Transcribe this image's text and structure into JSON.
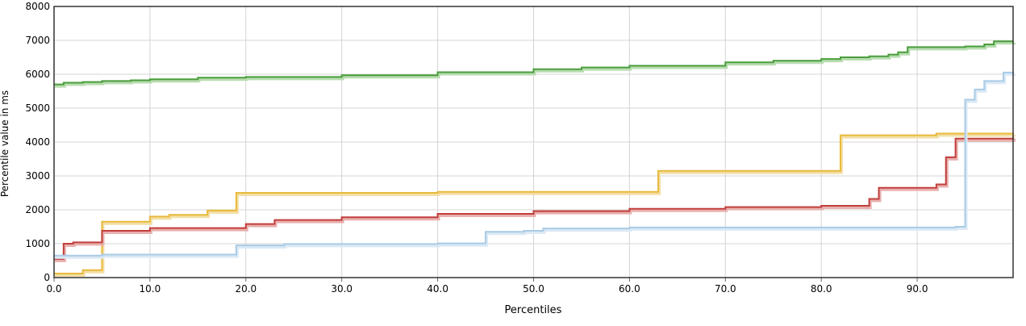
{
  "chart_data": {
    "type": "line",
    "title": "",
    "xlabel": "Percentiles",
    "ylabel": "Percentile value in ms",
    "xlim": [
      0,
      100
    ],
    "ylim": [
      0,
      8000
    ],
    "x_ticks": [
      "0.0",
      "10.0",
      "20.0",
      "30.0",
      "40.0",
      "50.0",
      "60.0",
      "70.0",
      "80.0",
      "90.0"
    ],
    "y_ticks": [
      "0",
      "1000",
      "2000",
      "3000",
      "4000",
      "5000",
      "6000",
      "7000",
      "8000"
    ],
    "grid": true,
    "legend": "none",
    "series": [
      {
        "color": "#4a9e3c",
        "shadow": "#b8dcb0",
        "points": [
          [
            0,
            5700
          ],
          [
            1,
            5750
          ],
          [
            3,
            5770
          ],
          [
            5,
            5800
          ],
          [
            8,
            5820
          ],
          [
            10,
            5850
          ],
          [
            15,
            5900
          ],
          [
            20,
            5920
          ],
          [
            30,
            5970
          ],
          [
            40,
            6060
          ],
          [
            50,
            6150
          ],
          [
            55,
            6200
          ],
          [
            60,
            6250
          ],
          [
            70,
            6350
          ],
          [
            75,
            6400
          ],
          [
            80,
            6450
          ],
          [
            82,
            6500
          ],
          [
            85,
            6530
          ],
          [
            87,
            6580
          ],
          [
            88,
            6650
          ],
          [
            89,
            6800
          ],
          [
            95,
            6820
          ],
          [
            97,
            6880
          ],
          [
            98,
            6970
          ],
          [
            100,
            6980
          ]
        ]
      },
      {
        "color": "#e8b93c",
        "shadow": "#f3dfa5",
        "points": [
          [
            0,
            120
          ],
          [
            3,
            220
          ],
          [
            5,
            1650
          ],
          [
            10,
            1800
          ],
          [
            12,
            1850
          ],
          [
            16,
            1980
          ],
          [
            19,
            2500
          ],
          [
            40,
            2530
          ],
          [
            63,
            3150
          ],
          [
            82,
            4200
          ],
          [
            92,
            4250
          ],
          [
            100,
            4270
          ]
        ]
      },
      {
        "color": "#c23f3b",
        "shadow": "#e8b0ae",
        "points": [
          [
            0,
            550
          ],
          [
            1,
            1000
          ],
          [
            2,
            1040
          ],
          [
            5,
            1380
          ],
          [
            10,
            1460
          ],
          [
            20,
            1580
          ],
          [
            23,
            1700
          ],
          [
            30,
            1780
          ],
          [
            40,
            1880
          ],
          [
            50,
            1960
          ],
          [
            60,
            2030
          ],
          [
            70,
            2080
          ],
          [
            80,
            2120
          ],
          [
            85,
            2320
          ],
          [
            86,
            2650
          ],
          [
            92,
            2750
          ],
          [
            93,
            3550
          ],
          [
            94,
            4100
          ],
          [
            100,
            4150
          ]
        ]
      },
      {
        "color": "#a9cbe6",
        "shadow": "#dbe9f5",
        "points": [
          [
            0,
            650
          ],
          [
            5,
            680
          ],
          [
            19,
            950
          ],
          [
            24,
            990
          ],
          [
            40,
            1010
          ],
          [
            45,
            1350
          ],
          [
            49,
            1380
          ],
          [
            51,
            1450
          ],
          [
            60,
            1480
          ],
          [
            94,
            1500
          ],
          [
            95,
            5250
          ],
          [
            96,
            5550
          ],
          [
            97,
            5800
          ],
          [
            99,
            6050
          ],
          [
            100,
            6070
          ]
        ]
      }
    ]
  }
}
